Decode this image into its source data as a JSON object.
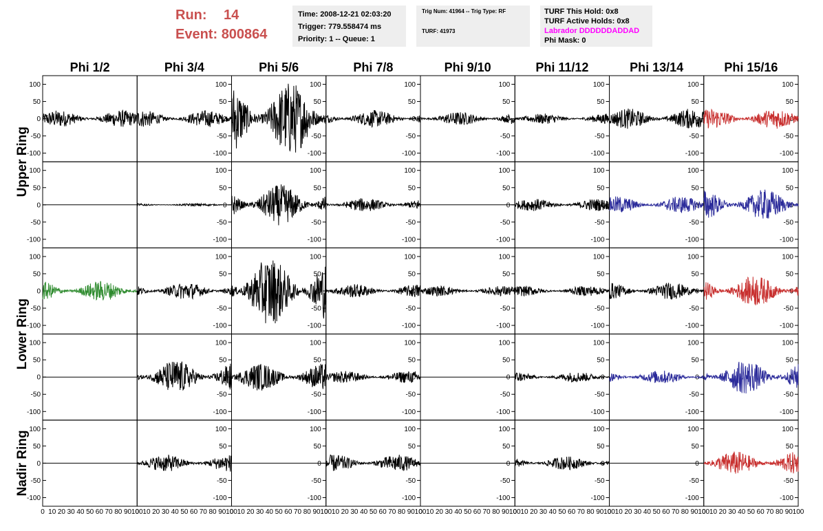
{
  "header": {
    "run_label": "Run:",
    "run_value": "14",
    "event_label": "Event:",
    "event_value": "800864",
    "time": "Time: 2008-12-21 02:03:20",
    "trigger": "Trigger: 779.558474 ms",
    "priority": "Priority: 1 -- Queue: 1",
    "trig_num": "Trig Num: 41964 -- Trig Type: RF",
    "turf": "TURF: 41973",
    "turf_hold": "TURF This Hold: 0x8",
    "turf_active": "TURF Active Holds: 0x8",
    "labrador": "Labrador DDDDDDADDAD",
    "phi_mask": "Phi Mask: 0"
  },
  "colors": {
    "run_text": "#c9504f",
    "panel_bg": "#eeeeee",
    "labrador": "#ff00ff",
    "trace_default": "#000000",
    "trace_red": "#c8302f",
    "trace_blue": "#2b2b9a",
    "trace_green": "#2e8b2e"
  },
  "chart_data": {
    "type": "line",
    "columns": [
      "Phi 1/2",
      "Phi 3/4",
      "Phi 5/6",
      "Phi 7/8",
      "Phi 9/10",
      "Phi 11/12",
      "Phi 13/14",
      "Phi 15/16"
    ],
    "rows": [
      "Upper Ring",
      "Lower Ring",
      "Nadir Ring"
    ],
    "xlim": [
      0,
      100
    ],
    "ylim": [
      -125,
      125
    ],
    "x_ticks": [
      "0",
      "10",
      "20",
      "30",
      "40",
      "50",
      "60",
      "70",
      "80",
      "90",
      "100"
    ],
    "y_ticks": [
      "100",
      "50",
      "0",
      "-50",
      "-100"
    ],
    "traces": [
      [
        {
          "amp": 25,
          "color": "default"
        },
        {
          "amp": 25,
          "color": "default"
        },
        {
          "amp": 110,
          "color": "default"
        },
        {
          "amp": 25,
          "color": "default"
        },
        {
          "amp": 20,
          "color": "default"
        },
        {
          "amp": 15,
          "color": "default"
        },
        {
          "amp": 30,
          "color": "default"
        },
        {
          "amp": 30,
          "color": "red"
        }
      ],
      [
        {
          "amp": 0,
          "color": "default"
        },
        {
          "amp": 4,
          "color": "default"
        },
        {
          "amp": 60,
          "color": "default"
        },
        {
          "amp": 20,
          "color": "default"
        },
        {
          "amp": 0,
          "color": "default"
        },
        {
          "amp": 18,
          "color": "default"
        },
        {
          "amp": 25,
          "color": "blue"
        },
        {
          "amp": 45,
          "color": "blue"
        }
      ],
      [
        {
          "amp": 30,
          "color": "green"
        },
        {
          "amp": 25,
          "color": "default"
        },
        {
          "amp": 100,
          "color": "default"
        },
        {
          "amp": 20,
          "color": "default"
        },
        {
          "amp": 15,
          "color": "default"
        },
        {
          "amp": 15,
          "color": "default"
        },
        {
          "amp": 25,
          "color": "default"
        },
        {
          "amp": 45,
          "color": "red"
        }
      ],
      [
        {
          "amp": 0,
          "color": "default"
        },
        {
          "amp": 50,
          "color": "default"
        },
        {
          "amp": 40,
          "color": "default"
        },
        {
          "amp": 18,
          "color": "default"
        },
        {
          "amp": 0,
          "color": "default"
        },
        {
          "amp": 15,
          "color": "default"
        },
        {
          "amp": 20,
          "color": "blue"
        },
        {
          "amp": 50,
          "color": "blue"
        }
      ],
      [
        {
          "amp": 0,
          "color": "default"
        },
        {
          "amp": 25,
          "color": "default"
        },
        {
          "amp": 0,
          "color": "default"
        },
        {
          "amp": 25,
          "color": "default"
        },
        {
          "amp": 0,
          "color": "default"
        },
        {
          "amp": 20,
          "color": "default"
        },
        {
          "amp": 0,
          "color": "default"
        },
        {
          "amp": 35,
          "color": "red"
        }
      ]
    ]
  }
}
